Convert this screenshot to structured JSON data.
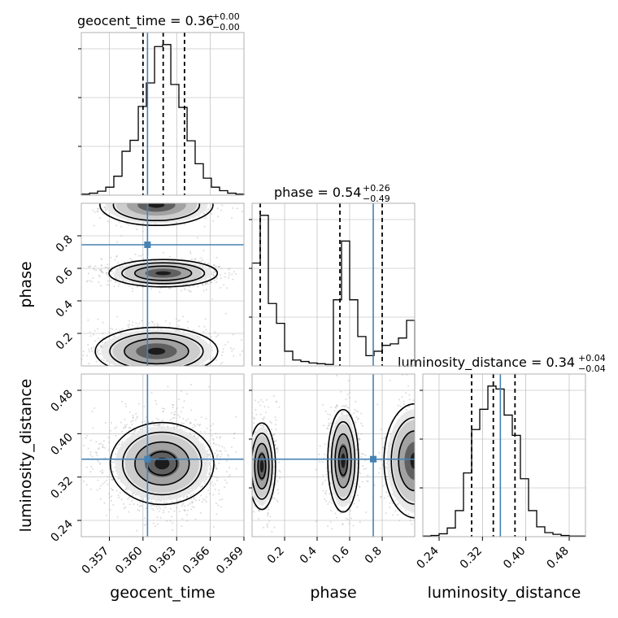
{
  "chart_data": {
    "type": "corner",
    "parameters": [
      {
        "name": "geocent_time",
        "axis_label": "geocent_time",
        "range": [
          0.3545,
          0.369
        ],
        "ticks": [
          0.357,
          0.36,
          0.363,
          0.366,
          0.369
        ],
        "tick_labels": [
          "0.357",
          "0.360",
          "0.363",
          "0.366",
          "0.369"
        ]
      },
      {
        "name": "phase",
        "axis_label": "phase",
        "range": [
          0.0,
          1.0
        ],
        "ticks": [
          0.2,
          0.4,
          0.6,
          0.8
        ],
        "tick_labels": [
          "0.2",
          "0.4",
          "0.6",
          "0.8"
        ]
      },
      {
        "name": "luminosity_distance",
        "axis_label": "luminosity_distance",
        "range": [
          0.21,
          0.51
        ],
        "ticks": [
          0.24,
          0.32,
          0.4,
          0.48
        ],
        "tick_labels": [
          "0.24",
          "0.32",
          "0.40",
          "0.48"
        ]
      }
    ],
    "titles": [
      {
        "param": "geocent_time",
        "label": "geocent_time",
        "value": "0.36",
        "plus": "+0.00",
        "minus": "−0.00"
      },
      {
        "param": "phase",
        "label": "phase",
        "value": "0.54",
        "plus": "+0.26",
        "minus": "−0.49"
      },
      {
        "param": "luminosity_distance",
        "label": "luminosity_distance",
        "value": "0.34",
        "plus": "+0.04",
        "minus": "−0.04"
      }
    ],
    "truths": {
      "geocent_time": 0.3604,
      "phase": 0.745,
      "luminosity_distance": 0.353
    },
    "quantiles": {
      "geocent_time": [
        0.36,
        0.3618,
        0.3637
      ],
      "phase": [
        0.05,
        0.54,
        0.8
      ],
      "luminosity_distance": [
        0.3,
        0.34,
        0.38
      ]
    },
    "histograms": {
      "geocent_time": {
        "bin_edges": [
          0.3545,
          0.35523,
          0.35595,
          0.35668,
          0.3574,
          0.35813,
          0.35885,
          0.35958,
          0.3603,
          0.36103,
          0.36175,
          0.36248,
          0.3632,
          0.36393,
          0.36465,
          0.36538,
          0.3661,
          0.36683,
          0.36755,
          0.36828,
          0.369
        ],
        "counts": [
          2,
          4,
          8,
          16,
          38,
          88,
          110,
          178,
          225,
          298,
          302,
          222,
          176,
          109,
          63,
          34,
          16,
          9,
          4,
          2
        ]
      },
      "phase": {
        "bin_edges": [
          0.0,
          0.05,
          0.1,
          0.15,
          0.2,
          0.25,
          0.3,
          0.35,
          0.4,
          0.45,
          0.5,
          0.55,
          0.6,
          0.65,
          0.7,
          0.75,
          0.8,
          0.85,
          0.9,
          0.95,
          1.0
        ],
        "counts": [
          140,
          205,
          85,
          58,
          20,
          8,
          6,
          4,
          3,
          2,
          90,
          170,
          90,
          40,
          14,
          20,
          28,
          30,
          38,
          62
        ]
      },
      "luminosity_distance": {
        "bin_edges": [
          0.21,
          0.225,
          0.24,
          0.255,
          0.27,
          0.285,
          0.3,
          0.315,
          0.33,
          0.345,
          0.36,
          0.375,
          0.39,
          0.405,
          0.42,
          0.435,
          0.45,
          0.465,
          0.48,
          0.495,
          0.51
        ],
        "counts": [
          1,
          2,
          5,
          15,
          45,
          110,
          185,
          220,
          260,
          255,
          210,
          175,
          100,
          45,
          17,
          7,
          4,
          2,
          1,
          1
        ]
      }
    },
    "contours_2d": [
      {
        "x": "geocent_time",
        "y": "phase",
        "mode_x": 0.3618,
        "mode_y": 0.57
      },
      {
        "x": "geocent_time",
        "y": "phase",
        "mode_x": 0.3605,
        "mode_y": 0.09
      },
      {
        "x": "geocent_time",
        "y": "phase",
        "mode_x": 0.3612,
        "mode_y": 0.96
      },
      {
        "x": "geocent_time",
        "y": "luminosity_distance",
        "mode_x": 0.3617,
        "mode_y": 0.34
      },
      {
        "x": "phase",
        "y": "luminosity_distance",
        "mode_x": 0.06,
        "mode_y": 0.34
      },
      {
        "x": "phase",
        "y": "luminosity_distance",
        "mode_x": 0.56,
        "mode_y": 0.35
      },
      {
        "x": "phase",
        "y": "luminosity_distance",
        "mode_x": 0.96,
        "mode_y": 0.35
      }
    ],
    "grid": true,
    "colors": {
      "truth": "#4682b4",
      "hist": "#000000",
      "quantile": "#000000",
      "points": "#b0b0b0",
      "grid": "#b0b0b0"
    }
  }
}
